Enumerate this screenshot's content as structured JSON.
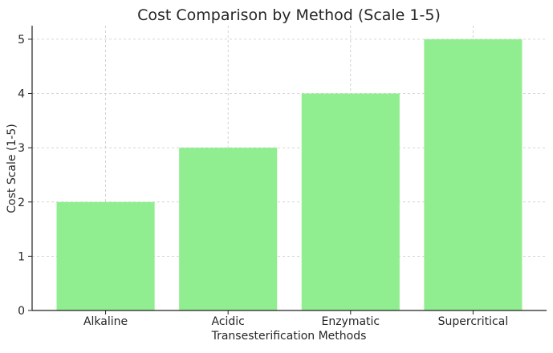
{
  "chart_data": {
    "type": "bar",
    "title": "Cost Comparison by Method (Scale 1-5)",
    "xlabel": "Transesterification Methods",
    "ylabel": "Cost Scale (1-5)",
    "categories": [
      "Alkaline",
      "Acidic",
      "Enzymatic",
      "Supercritical"
    ],
    "values": [
      2,
      3,
      4,
      5
    ],
    "ylim": [
      0,
      5.25
    ],
    "yticks": [
      0,
      1,
      2,
      3,
      4,
      5
    ],
    "grid": true,
    "legend": "none",
    "colors": {
      "bar": "#90ee90",
      "axis": "#222222",
      "grid": "#c8c8c8",
      "text": "#262626"
    }
  }
}
